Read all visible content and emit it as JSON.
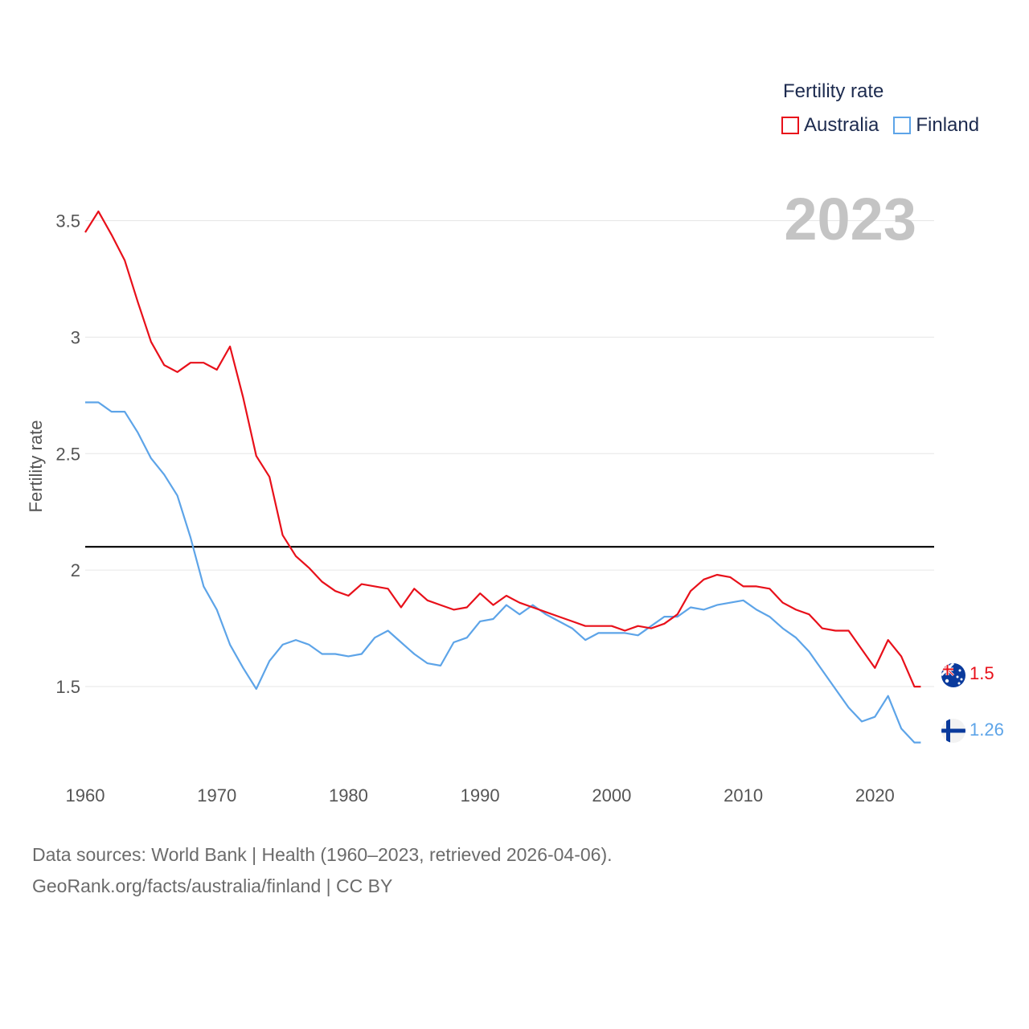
{
  "legend": {
    "title": "Fertility rate",
    "items": [
      {
        "label": "Australia",
        "color": "#e8101a"
      },
      {
        "label": "Finland",
        "color": "#5da4e8"
      }
    ]
  },
  "year_label": "2023",
  "footer": {
    "line1": "Data sources: World Bank | Health (1960–2023, retrieved 2026-04-06).",
    "line2": "GeoRank.org/facts/australia/finland | CC BY"
  },
  "chart_data": {
    "type": "line",
    "title": "",
    "xlabel": "",
    "ylabel": "Fertility rate",
    "xlim": [
      1960,
      2024.5
    ],
    "ylim": [
      1.2,
      3.65
    ],
    "x_ticks": [
      1960,
      1970,
      1980,
      1990,
      2000,
      2010,
      2020
    ],
    "x_tick_labels": [
      "1960",
      "1970",
      "1980",
      "1990",
      "2000",
      "2010",
      "2020"
    ],
    "y_ticks": [
      1.5,
      2,
      2.5,
      3,
      3.5
    ],
    "y_tick_labels": [
      "1.5",
      "2",
      "2.5",
      "3",
      "3.5"
    ],
    "reference_line": {
      "y": 2.1,
      "color": "#000000"
    },
    "x": [
      1960,
      1961,
      1962,
      1963,
      1964,
      1965,
      1966,
      1967,
      1968,
      1969,
      1970,
      1971,
      1972,
      1973,
      1974,
      1975,
      1976,
      1977,
      1978,
      1979,
      1980,
      1981,
      1982,
      1983,
      1984,
      1985,
      1986,
      1987,
      1988,
      1989,
      1990,
      1991,
      1992,
      1993,
      1994,
      1995,
      1996,
      1997,
      1998,
      1999,
      2000,
      2001,
      2002,
      2003,
      2004,
      2005,
      2006,
      2007,
      2008,
      2009,
      2010,
      2011,
      2012,
      2013,
      2014,
      2015,
      2016,
      2017,
      2018,
      2019,
      2020,
      2021,
      2022,
      2023
    ],
    "series": [
      {
        "name": "Australia",
        "color": "#e8101a",
        "end_label": "1.5",
        "values": [
          3.45,
          3.54,
          3.44,
          3.33,
          3.15,
          2.98,
          2.88,
          2.85,
          2.89,
          2.89,
          2.86,
          2.96,
          2.74,
          2.49,
          2.4,
          2.15,
          2.06,
          2.01,
          1.95,
          1.91,
          1.89,
          1.94,
          1.93,
          1.92,
          1.84,
          1.92,
          1.87,
          1.85,
          1.83,
          1.84,
          1.9,
          1.85,
          1.89,
          1.86,
          1.84,
          1.82,
          1.8,
          1.78,
          1.76,
          1.76,
          1.76,
          1.74,
          1.76,
          1.75,
          1.77,
          1.81,
          1.91,
          1.96,
          1.98,
          1.97,
          1.93,
          1.93,
          1.92,
          1.86,
          1.83,
          1.81,
          1.75,
          1.74,
          1.74,
          1.66,
          1.58,
          1.7,
          1.63,
          1.5
        ]
      },
      {
        "name": "Finland",
        "color": "#5da4e8",
        "end_label": "1.26",
        "values": [
          2.72,
          2.72,
          2.68,
          2.68,
          2.59,
          2.48,
          2.41,
          2.32,
          2.14,
          1.93,
          1.83,
          1.68,
          1.58,
          1.49,
          1.61,
          1.68,
          1.7,
          1.68,
          1.64,
          1.64,
          1.63,
          1.64,
          1.71,
          1.74,
          1.69,
          1.64,
          1.6,
          1.59,
          1.69,
          1.71,
          1.78,
          1.79,
          1.85,
          1.81,
          1.85,
          1.81,
          1.78,
          1.75,
          1.7,
          1.73,
          1.73,
          1.73,
          1.72,
          1.76,
          1.8,
          1.8,
          1.84,
          1.83,
          1.85,
          1.86,
          1.87,
          1.83,
          1.8,
          1.75,
          1.71,
          1.65,
          1.57,
          1.49,
          1.41,
          1.35,
          1.37,
          1.46,
          1.32,
          1.26
        ]
      }
    ]
  }
}
